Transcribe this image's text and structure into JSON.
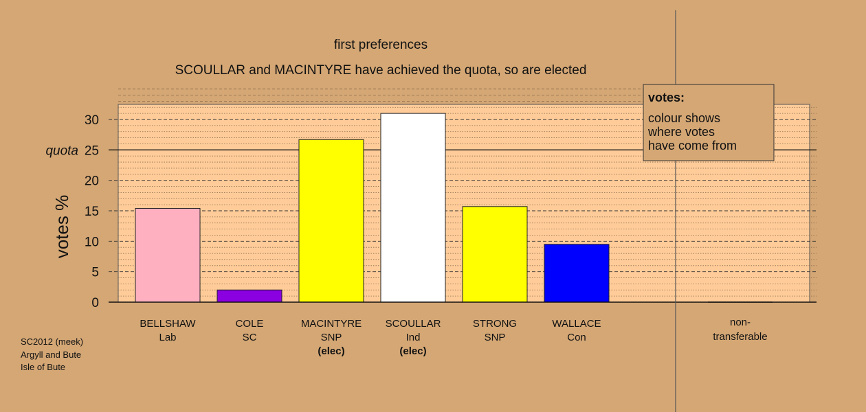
{
  "chart_data": {
    "type": "bar",
    "title": "first preferences",
    "subtitle": "SCOULLAR and MACINTYRE have achieved the quota, so are elected",
    "ylabel": "votes %",
    "ylim": [
      0,
      32.5
    ],
    "yticks": [
      0,
      5,
      10,
      15,
      20,
      25,
      30
    ],
    "quota": 25,
    "quota_label": "quota",
    "categories": [
      {
        "name": "BELLSHAW",
        "party": "Lab",
        "status": "",
        "value": 15.4,
        "color": "#ffb0c0"
      },
      {
        "name": "COLE",
        "party": "SC",
        "status": "",
        "value": 2.0,
        "color": "#8b00e0"
      },
      {
        "name": "MACINTYRE",
        "party": "SNP",
        "status": "(elec)",
        "value": 26.7,
        "color": "#ffff00"
      },
      {
        "name": "SCOULLAR",
        "party": "Ind",
        "status": "(elec)",
        "value": 31.0,
        "color": "#ffffff"
      },
      {
        "name": "STRONG",
        "party": "SNP",
        "status": "",
        "value": 15.7,
        "color": "#ffff00"
      },
      {
        "name": "WALLACE",
        "party": "Con",
        "status": "",
        "value": 9.5,
        "color": "#0000ff"
      }
    ],
    "nontransferable": {
      "line1": "non-",
      "line2": "transferable",
      "value": 0
    },
    "legend": {
      "title": "votes:",
      "lines": [
        "colour shows",
        "where votes",
        "have come from"
      ]
    },
    "grid": true,
    "colors": {
      "background": "#d4a775",
      "plot_background": "#ffcc99"
    }
  },
  "footnote": {
    "line1": "SC2012 (meek)",
    "line2": "Argyll and Bute",
    "line3": "Isle of Bute"
  }
}
